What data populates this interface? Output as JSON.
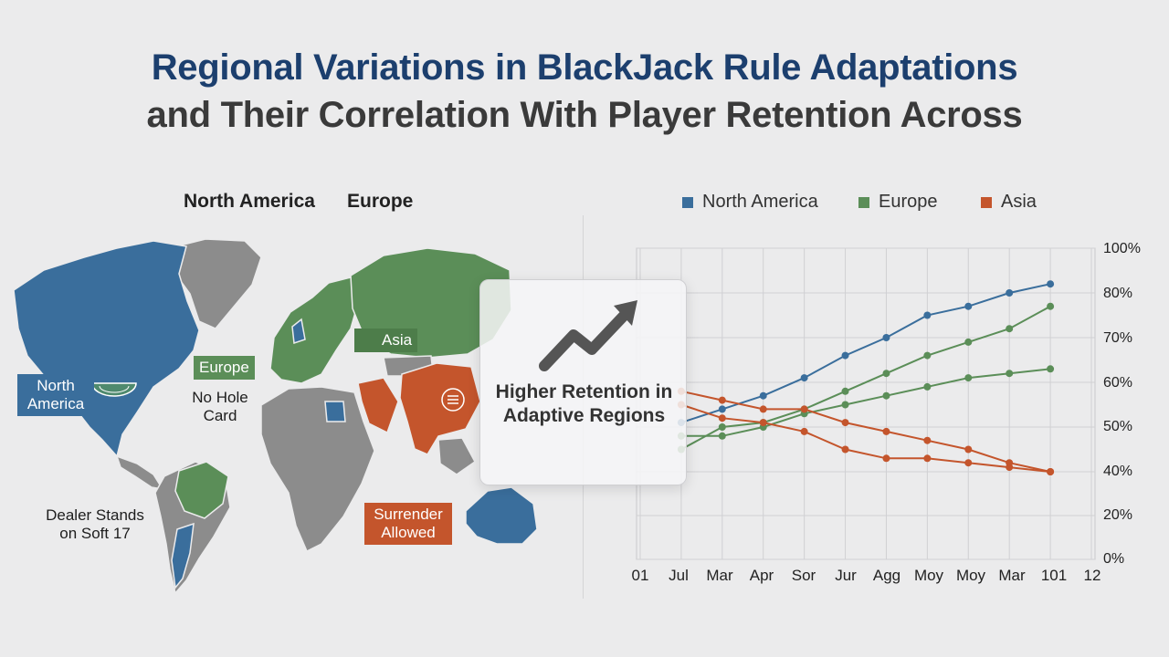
{
  "title": {
    "line1": "Regional Variations in BlackJack Rule Adaptations",
    "line2": "and Their Correlation With Player Retention Across"
  },
  "map": {
    "legend": [
      "North America",
      "Europe"
    ],
    "tags": {
      "north_america": "North America",
      "europe": "Europe",
      "asia": "Asia",
      "surrender": "Surrender Allowed"
    },
    "notes": {
      "no_hole_card": "No Hole Card",
      "dealer_stands": "Dealer Stands on Soft 17"
    },
    "colors": {
      "north_america": "#3a6e9c",
      "europe": "#5b8e58",
      "asia": "#c4552c",
      "other": "#8c8c8c"
    }
  },
  "callout": {
    "text": "Higher Retention in Adaptive Regions",
    "icon": "trend-up-arrow-icon"
  },
  "chart_data": {
    "type": "line",
    "legend_position": "top",
    "grid": true,
    "x": [
      "01",
      "Jul",
      "Mar",
      "Apr",
      "Sor",
      "Jur",
      "Agg",
      "Moy",
      "Moy",
      "Mar",
      "101",
      "12"
    ],
    "y_ticks": [
      "100%",
      "80%",
      "70%",
      "60%",
      "50%",
      "40%",
      "20%",
      "0%"
    ],
    "series": [
      {
        "name": "North America",
        "color": "#3a6e9c",
        "values": [
          null,
          51,
          54,
          57,
          61,
          66,
          70,
          75,
          77,
          80,
          84,
          null
        ]
      },
      {
        "name": "Europe",
        "color": "#5b8e58",
        "values": [
          null,
          45,
          50,
          51,
          54,
          58,
          62,
          66,
          69,
          72,
          77,
          null
        ]
      },
      {
        "name": "Europe",
        "color": "#5b8e58",
        "values": [
          null,
          48,
          48,
          50,
          53,
          55,
          57,
          59,
          61,
          62,
          63,
          null
        ]
      },
      {
        "name": "Asia",
        "color": "#c4552c",
        "values": [
          null,
          55,
          52,
          51,
          49,
          45,
          43,
          43,
          42,
          41,
          40,
          null
        ]
      },
      {
        "name": "Asia",
        "color": "#c4552c",
        "values": [
          null,
          58,
          56,
          54,
          54,
          51,
          49,
          47,
          45,
          42,
          40,
          null
        ]
      }
    ]
  }
}
